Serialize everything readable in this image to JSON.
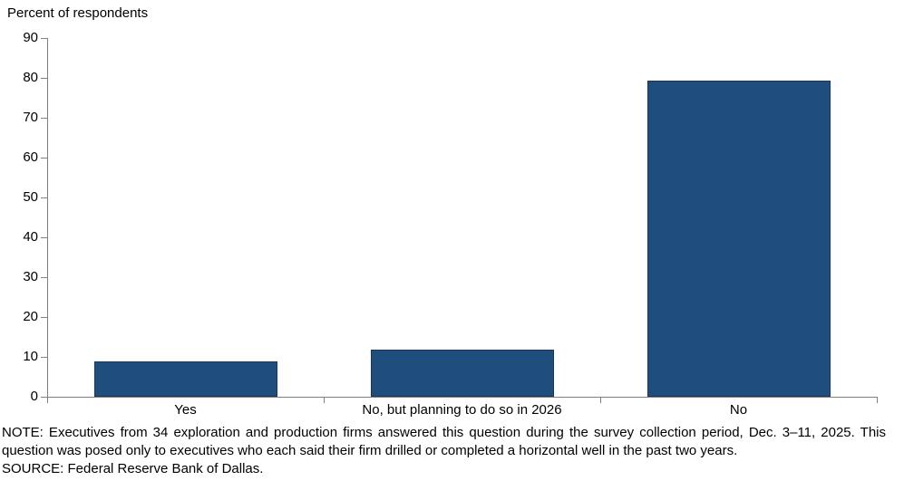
{
  "header": {
    "title": "Percent of respondents"
  },
  "chart_data": {
    "type": "bar",
    "title": "Percent of respondents",
    "categories": [
      "Yes",
      "No, but planning to do so in 2026",
      "No"
    ],
    "values": [
      8.8,
      11.8,
      79.4
    ],
    "xlabel": "",
    "ylabel": "Percent of respondents",
    "ylim": [
      0,
      90
    ],
    "yticks": [
      0,
      10,
      20,
      30,
      40,
      50,
      60,
      70,
      80,
      90
    ],
    "grid": "off",
    "legend": "none",
    "bar_color": "#1f4e7c",
    "axis_color": "#7f7f7f"
  },
  "footer": {
    "note": "NOTE: Executives from 34 exploration and production firms answered this question during the survey collection period, Dec. 3–11, 2025. This question was posed only to executives who each said their firm drilled or completed a horizontal well in the past two years.",
    "source": "SOURCE: Federal Reserve Bank of Dallas."
  }
}
